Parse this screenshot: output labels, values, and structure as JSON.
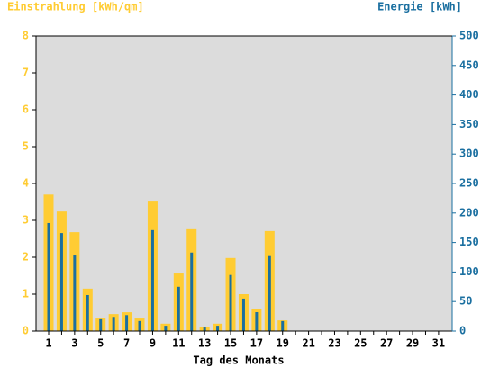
{
  "chart_data": {
    "type": "bar",
    "y_title": "Einstrahlung [kWh/qm]",
    "y2_title": "Energie [kWh]",
    "x_title": "Tag des Monats",
    "categories": [
      "1",
      null,
      "3",
      null,
      "5",
      null,
      "7",
      null,
      "9",
      null,
      "11",
      null,
      "13",
      null,
      "15",
      null,
      "17",
      null,
      "19",
      null,
      "21",
      null,
      "23",
      null,
      "25",
      null,
      "27",
      null,
      "29",
      null,
      "31"
    ],
    "series": [
      {
        "name": "Einstrahlung",
        "color": "#ffcc33",
        "values": [
          3.7,
          3.24,
          2.68,
          1.15,
          0.34,
          0.46,
          0.51,
          0.34,
          3.51,
          0.2,
          1.56,
          2.76,
          0.12,
          0.2,
          1.98,
          1.0,
          0.61,
          2.71,
          0.29,
          null,
          null,
          null,
          null,
          null,
          null,
          null,
          null,
          null,
          null,
          null,
          null
        ]
      },
      {
        "name": "Energie",
        "color": "#1a6fa0",
        "axis": "y2",
        "values": [
          183,
          166,
          128,
          61,
          20,
          24,
          27,
          17,
          171,
          9,
          75,
          133,
          6,
          9,
          95,
          55,
          32,
          127,
          17,
          null,
          null,
          null,
          null,
          null,
          null,
          null,
          null,
          null,
          null,
          null,
          null
        ]
      }
    ],
    "ylim": [
      0,
      8
    ],
    "yticks": [
      0,
      1,
      2,
      3,
      4,
      5,
      6,
      7,
      8
    ],
    "y2lim": [
      0,
      500
    ],
    "y2ticks": [
      0,
      50,
      100,
      150,
      200,
      250,
      300,
      350,
      400,
      450,
      500
    ],
    "plot_background": "#dcdcdc"
  }
}
